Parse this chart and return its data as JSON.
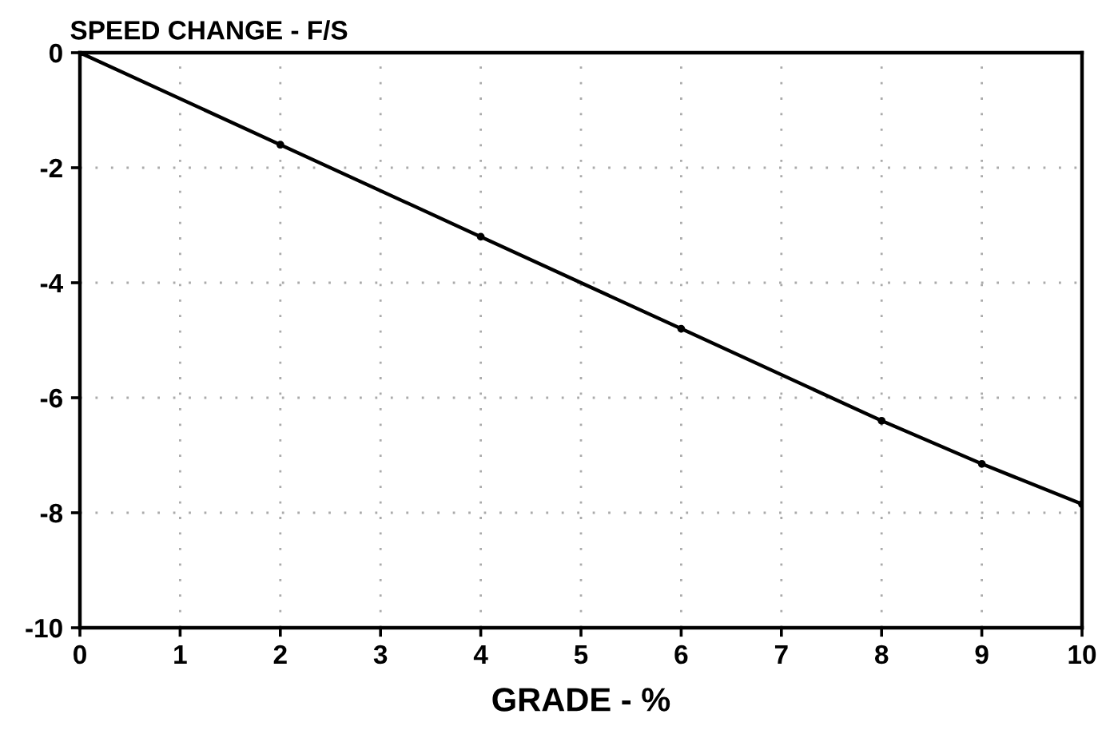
{
  "chart_data": {
    "type": "line",
    "title": "SPEED CHANGE - F/S",
    "xlabel": "GRADE - %",
    "x": [
      0,
      2,
      4,
      6,
      8,
      9,
      10
    ],
    "series": [
      {
        "color": "#000000",
        "values": [
          0,
          -1.6,
          -3.2,
          -4.8,
          -6.4,
          -7.15,
          -7.85
        ]
      }
    ],
    "xlim": [
      0,
      10
    ],
    "xticks": [
      0,
      1,
      2,
      3,
      4,
      5,
      6,
      7,
      8,
      9,
      10
    ],
    "ylim": [
      -10,
      0
    ],
    "yticks": [
      -10,
      -8,
      -6,
      -4,
      -2,
      0
    ],
    "grid": true,
    "marker": "circle",
    "line_style": "solid"
  }
}
